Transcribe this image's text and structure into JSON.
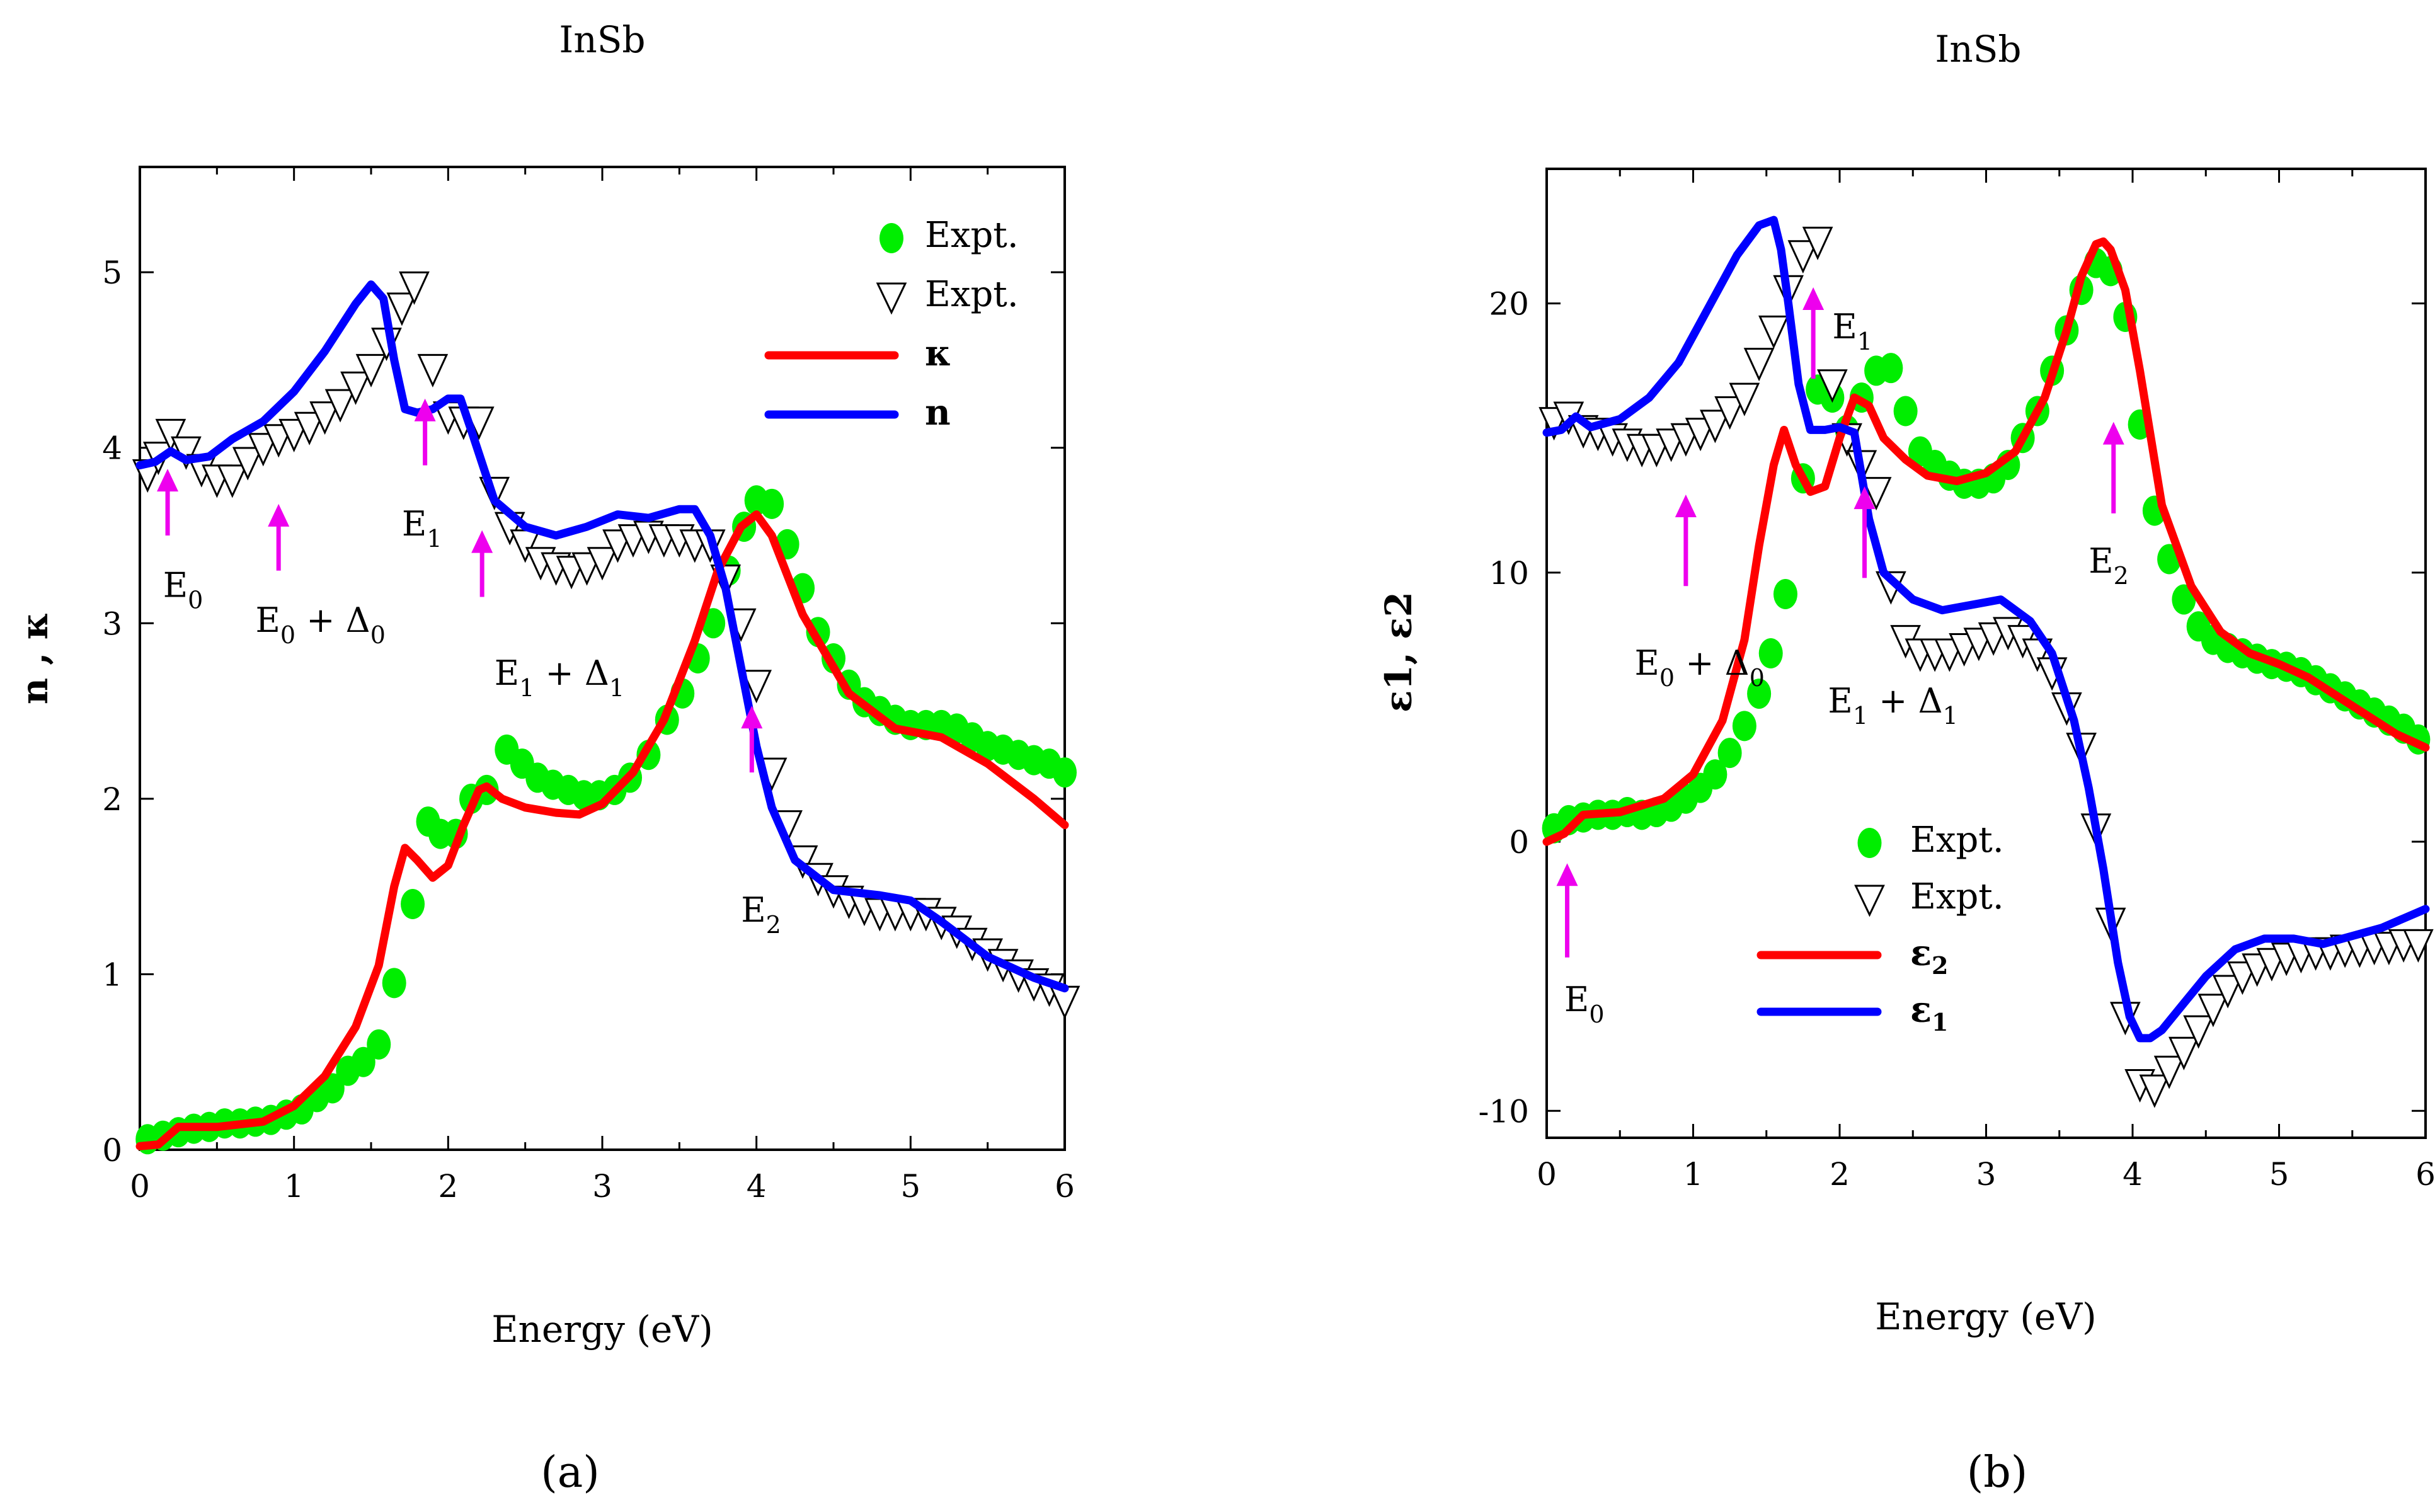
{
  "caption_a": "(a)",
  "caption_b": "(b)",
  "chart_data": [
    {
      "type": "line",
      "title": "InSb",
      "xlabel": "Energy (eV)",
      "ylabel": "n , κ",
      "xlim": [
        0,
        6
      ],
      "ylim": [
        0,
        5.6
      ],
      "xticks": [
        "0",
        "1",
        "2",
        "3",
        "4",
        "5",
        "6"
      ],
      "yticks": [
        "0",
        "1",
        "2",
        "3",
        "4",
        "5"
      ],
      "legend": [
        {
          "label": "Expt.",
          "marker": "circle",
          "color": "#00ee00"
        },
        {
          "label": "Expt.",
          "marker": "triangle-down",
          "color": "#000000"
        },
        {
          "label": "κ",
          "marker": "line",
          "color": "#ff0000"
        },
        {
          "label": "n",
          "marker": "line",
          "color": "#0000ff"
        }
      ],
      "series": [
        {
          "name": "κ",
          "color": "#ff0000",
          "kind": "line",
          "x": [
            0,
            0.12,
            0.25,
            0.5,
            0.8,
            1.0,
            1.2,
            1.4,
            1.55,
            1.65,
            1.72,
            1.8,
            1.9,
            2.0,
            2.1,
            2.2,
            2.25,
            2.35,
            2.5,
            2.7,
            2.85,
            3.0,
            3.2,
            3.4,
            3.6,
            3.75,
            3.9,
            4.0,
            4.1,
            4.3,
            4.6,
            4.9,
            5.2,
            5.5,
            5.8,
            6.0
          ],
          "y": [
            0.02,
            0.03,
            0.13,
            0.13,
            0.16,
            0.25,
            0.42,
            0.7,
            1.05,
            1.5,
            1.72,
            1.65,
            1.55,
            1.62,
            1.85,
            2.05,
            2.07,
            2.0,
            1.95,
            1.92,
            1.91,
            1.97,
            2.15,
            2.45,
            2.9,
            3.3,
            3.55,
            3.62,
            3.5,
            3.05,
            2.6,
            2.4,
            2.35,
            2.2,
            2.0,
            1.85
          ]
        },
        {
          "name": "n",
          "color": "#0000ff",
          "kind": "line",
          "x": [
            0,
            0.1,
            0.2,
            0.3,
            0.45,
            0.6,
            0.8,
            1.0,
            1.2,
            1.4,
            1.5,
            1.58,
            1.65,
            1.72,
            1.8,
            1.9,
            2.0,
            2.08,
            2.15,
            2.3,
            2.5,
            2.7,
            2.9,
            3.1,
            3.3,
            3.5,
            3.6,
            3.7,
            3.8,
            3.9,
            4.0,
            4.1,
            4.25,
            4.5,
            4.8,
            5.0,
            5.2,
            5.5,
            5.8,
            6.0
          ],
          "y": [
            3.9,
            3.92,
            3.98,
            3.93,
            3.95,
            4.05,
            4.15,
            4.32,
            4.55,
            4.82,
            4.93,
            4.85,
            4.5,
            4.22,
            4.2,
            4.22,
            4.28,
            4.28,
            4.1,
            3.7,
            3.55,
            3.5,
            3.55,
            3.62,
            3.6,
            3.65,
            3.65,
            3.5,
            3.2,
            2.75,
            2.3,
            1.95,
            1.65,
            1.48,
            1.45,
            1.42,
            1.3,
            1.1,
            0.98,
            0.92
          ]
        },
        {
          "name": "Expt. κ",
          "color": "#00ee00",
          "kind": "circle",
          "x": [
            0.05,
            0.15,
            0.25,
            0.35,
            0.45,
            0.55,
            0.65,
            0.75,
            0.85,
            0.95,
            1.05,
            1.15,
            1.25,
            1.35,
            1.45,
            1.55,
            1.65,
            1.77,
            1.87,
            1.95,
            2.05,
            2.15,
            2.25,
            2.38,
            2.48,
            2.58,
            2.68,
            2.78,
            2.88,
            2.98,
            3.08,
            3.18,
            3.3,
            3.42,
            3.52,
            3.62,
            3.72,
            3.82,
            3.92,
            4.0,
            4.1,
            4.2,
            4.3,
            4.4,
            4.5,
            4.6,
            4.7,
            4.8,
            4.9,
            5.0,
            5.1,
            5.2,
            5.3,
            5.4,
            5.5,
            5.6,
            5.7,
            5.8,
            5.9,
            6.0
          ],
          "y": [
            0.06,
            0.08,
            0.1,
            0.12,
            0.13,
            0.15,
            0.15,
            0.16,
            0.17,
            0.2,
            0.23,
            0.3,
            0.35,
            0.45,
            0.5,
            0.6,
            0.95,
            1.4,
            1.87,
            1.8,
            1.8,
            2.0,
            2.05,
            2.28,
            2.2,
            2.12,
            2.08,
            2.05,
            2.02,
            2.02,
            2.05,
            2.12,
            2.25,
            2.45,
            2.6,
            2.8,
            3.0,
            3.3,
            3.55,
            3.7,
            3.68,
            3.45,
            3.2,
            2.95,
            2.8,
            2.65,
            2.55,
            2.5,
            2.45,
            2.42,
            2.42,
            2.42,
            2.4,
            2.35,
            2.3,
            2.28,
            2.25,
            2.22,
            2.2,
            2.15
          ]
        },
        {
          "name": "Expt. n",
          "color": "#000000",
          "kind": "triangle",
          "x": [
            0.05,
            0.12,
            0.2,
            0.3,
            0.4,
            0.5,
            0.6,
            0.7,
            0.8,
            0.9,
            1.0,
            1.1,
            1.2,
            1.3,
            1.4,
            1.5,
            1.6,
            1.7,
            1.78,
            1.9,
            2.0,
            2.1,
            2.2,
            2.3,
            2.4,
            2.5,
            2.6,
            2.7,
            2.8,
            2.9,
            3.0,
            3.1,
            3.2,
            3.3,
            3.4,
            3.5,
            3.6,
            3.7,
            3.8,
            3.9,
            4.0,
            4.1,
            4.2,
            4.3,
            4.4,
            4.5,
            4.6,
            4.7,
            4.8,
            4.9,
            5.0,
            5.1,
            5.2,
            5.3,
            5.4,
            5.5,
            5.6,
            5.7,
            5.8,
            5.9,
            6.0
          ],
          "y": [
            3.85,
            3.95,
            4.08,
            3.98,
            3.88,
            3.82,
            3.82,
            3.92,
            4.0,
            4.05,
            4.08,
            4.12,
            4.18,
            4.25,
            4.35,
            4.45,
            4.6,
            4.8,
            4.92,
            4.45,
            4.18,
            4.15,
            4.15,
            3.75,
            3.55,
            3.45,
            3.35,
            3.32,
            3.3,
            3.32,
            3.35,
            3.45,
            3.48,
            3.5,
            3.48,
            3.48,
            3.45,
            3.45,
            3.25,
            3.0,
            2.65,
            2.15,
            1.85,
            1.65,
            1.55,
            1.48,
            1.42,
            1.38,
            1.35,
            1.35,
            1.35,
            1.35,
            1.3,
            1.25,
            1.18,
            1.12,
            1.06,
            1.0,
            0.95,
            0.92,
            0.85
          ]
        }
      ],
      "annotations": [
        {
          "main": "E",
          "sub": "0",
          "rest": "",
          "sub2": "",
          "x": 0.15,
          "y": 3.15
        },
        {
          "main": "E",
          "sub": "0",
          "rest": " + Δ",
          "sub2": "0",
          "x": 0.75,
          "y": 2.95
        },
        {
          "main": "E",
          "sub": "1",
          "rest": "",
          "sub2": "",
          "x": 1.7,
          "y": 3.5
        },
        {
          "main": "E",
          "sub": "1",
          "rest": " + Δ",
          "sub2": "1",
          "x": 2.3,
          "y": 2.65
        },
        {
          "main": "E",
          "sub": "2",
          "rest": "",
          "sub2": "",
          "x": 3.9,
          "y": 1.3
        }
      ],
      "arrows": [
        {
          "x": 0.18,
          "y_tail": 3.5,
          "y_head": 3.88
        },
        {
          "x": 0.9,
          "y_tail": 3.3,
          "y_head": 3.68
        },
        {
          "x": 1.85,
          "y_tail": 3.9,
          "y_head": 4.28
        },
        {
          "x": 2.22,
          "y_tail": 3.15,
          "y_head": 3.53
        },
        {
          "x": 3.97,
          "y_tail": 2.15,
          "y_head": 2.53
        }
      ]
    },
    {
      "type": "line",
      "title": "InSb",
      "xlabel": "Energy (eV)",
      "ylabel": "ε1, ε2",
      "xlim": [
        0,
        6
      ],
      "ylim": [
        -11,
        25
      ],
      "xticks": [
        "0",
        "1",
        "2",
        "3",
        "4",
        "5",
        "6"
      ],
      "yticks": [
        "-10",
        "0",
        "10",
        "20"
      ],
      "yticks_values": [
        -10,
        0,
        10,
        20
      ],
      "legend": [
        {
          "label": "Expt.",
          "marker": "circle",
          "color": "#00ee00"
        },
        {
          "label": "Expt.",
          "marker": "triangle-down",
          "color": "#000000"
        },
        {
          "label": "ε",
          "label_sub": "2",
          "marker": "line",
          "color": "#ff0000"
        },
        {
          "label": "ε",
          "label_sub": "1",
          "marker": "line",
          "color": "#0000ff"
        }
      ],
      "series": [
        {
          "name": "ε2",
          "color": "#ff0000",
          "kind": "line",
          "x": [
            0,
            0.12,
            0.25,
            0.5,
            0.8,
            1.0,
            1.2,
            1.35,
            1.45,
            1.55,
            1.62,
            1.7,
            1.8,
            1.9,
            2.0,
            2.1,
            2.2,
            2.3,
            2.45,
            2.6,
            2.8,
            3.0,
            3.2,
            3.4,
            3.55,
            3.65,
            3.75,
            3.8,
            3.85,
            3.95,
            4.05,
            4.2,
            4.4,
            4.6,
            4.8,
            5.0,
            5.2,
            5.4,
            5.6,
            5.8,
            6.0
          ],
          "y": [
            0,
            0.3,
            1.0,
            1.1,
            1.6,
            2.5,
            4.5,
            7.5,
            11,
            14,
            15.3,
            14,
            13,
            13.2,
            15,
            16.5,
            16.2,
            15,
            14.2,
            13.6,
            13.4,
            13.7,
            14.5,
            16.5,
            19,
            21,
            22.2,
            22.3,
            22,
            20.5,
            17.5,
            12.5,
            9.5,
            7.8,
            7.0,
            6.6,
            6.1,
            5.4,
            4.7,
            4.0,
            3.5
          ]
        },
        {
          "name": "ε1",
          "color": "#0000ff",
          "kind": "line",
          "x": [
            0,
            0.1,
            0.2,
            0.3,
            0.5,
            0.7,
            0.9,
            1.1,
            1.3,
            1.45,
            1.55,
            1.6,
            1.65,
            1.72,
            1.8,
            1.9,
            2.0,
            2.1,
            2.2,
            2.3,
            2.5,
            2.7,
            2.9,
            3.1,
            3.3,
            3.45,
            3.6,
            3.7,
            3.8,
            3.9,
            3.98,
            4.05,
            4.12,
            4.2,
            4.35,
            4.5,
            4.7,
            4.9,
            5.1,
            5.3,
            5.5,
            5.7,
            6.0
          ],
          "y": [
            15.2,
            15.3,
            15.8,
            15.4,
            15.7,
            16.5,
            17.8,
            19.8,
            21.8,
            22.9,
            23.1,
            22,
            20,
            17,
            15.3,
            15.3,
            15.4,
            15.2,
            12,
            10,
            9,
            8.6,
            8.8,
            9,
            8.2,
            7,
            4.5,
            2,
            -1,
            -4.5,
            -6.5,
            -7.3,
            -7.3,
            -7,
            -6,
            -5,
            -4,
            -3.6,
            -3.6,
            -3.8,
            -3.5,
            -3.2,
            -2.5
          ]
        },
        {
          "name": "Expt. ε2",
          "color": "#00ee00",
          "kind": "circle",
          "x": [
            0.05,
            0.15,
            0.25,
            0.35,
            0.45,
            0.55,
            0.65,
            0.75,
            0.85,
            0.95,
            1.05,
            1.15,
            1.25,
            1.35,
            1.45,
            1.53,
            1.63,
            1.75,
            1.85,
            1.95,
            2.05,
            2.15,
            2.25,
            2.35,
            2.45,
            2.55,
            2.65,
            2.75,
            2.85,
            2.95,
            3.05,
            3.15,
            3.25,
            3.35,
            3.45,
            3.55,
            3.65,
            3.75,
            3.85,
            3.95,
            4.05,
            4.15,
            4.25,
            4.35,
            4.45,
            4.55,
            4.65,
            4.75,
            4.85,
            4.95,
            5.05,
            5.15,
            5.25,
            5.35,
            5.45,
            5.55,
            5.65,
            5.75,
            5.85,
            5.95
          ],
          "y": [
            0.5,
            0.8,
            0.9,
            1.0,
            1.0,
            1.1,
            1.0,
            1.1,
            1.3,
            1.6,
            2.0,
            2.5,
            3.3,
            4.3,
            5.5,
            7,
            9.2,
            13.5,
            16.8,
            16.5,
            15.3,
            16.5,
            17.5,
            17.6,
            16,
            14.5,
            14,
            13.6,
            13.3,
            13.3,
            13.5,
            14,
            15,
            16,
            17.5,
            19,
            20.5,
            21.5,
            21.2,
            19.5,
            15.5,
            12.3,
            10.5,
            9,
            8,
            7.5,
            7.2,
            7,
            6.8,
            6.6,
            6.5,
            6.3,
            6,
            5.7,
            5.4,
            5.1,
            4.8,
            4.5,
            4.2,
            3.8
          ]
        },
        {
          "name": "Expt. ε1",
          "color": "#000000",
          "kind": "triangle",
          "x": [
            0.05,
            0.15,
            0.25,
            0.35,
            0.45,
            0.55,
            0.65,
            0.75,
            0.85,
            0.95,
            1.05,
            1.15,
            1.25,
            1.35,
            1.45,
            1.55,
            1.65,
            1.75,
            1.85,
            1.95,
            2.05,
            2.15,
            2.25,
            2.35,
            2.45,
            2.55,
            2.65,
            2.75,
            2.85,
            2.95,
            3.05,
            3.15,
            3.25,
            3.35,
            3.45,
            3.55,
            3.65,
            3.75,
            3.85,
            3.95,
            4.05,
            4.15,
            4.25,
            4.35,
            4.45,
            4.55,
            4.65,
            4.75,
            4.85,
            4.95,
            5.05,
            5.15,
            5.25,
            5.35,
            5.45,
            5.55,
            5.65,
            5.75,
            5.85,
            5.95
          ],
          "y": [
            15.6,
            15.8,
            15.3,
            15.2,
            15,
            14.8,
            14.6,
            14.6,
            14.8,
            15,
            15.2,
            15.5,
            16,
            16.5,
            17.8,
            19,
            20.5,
            21.8,
            22.3,
            17,
            15,
            14,
            13,
            9.5,
            7.5,
            7,
            7,
            7,
            7.2,
            7.4,
            7.6,
            7.8,
            7.5,
            7.0,
            6.3,
            5.0,
            3.5,
            0.5,
            -3,
            -6.5,
            -9,
            -9.2,
            -8.5,
            -7.8,
            -7,
            -6.2,
            -5.5,
            -5,
            -4.7,
            -4.5,
            -4.3,
            -4.2,
            -4.1,
            -4.1,
            -4,
            -4,
            -3.9,
            -3.9,
            -3.8,
            -3.8
          ]
        }
      ],
      "annotations": [
        {
          "main": "E",
          "sub": "0",
          "rest": "",
          "sub2": "",
          "x": 0.12,
          "y": -6.3
        },
        {
          "main": "E",
          "sub": "0",
          "rest": " + Δ",
          "sub2": "0",
          "x": 0.6,
          "y": 6.2
        },
        {
          "main": "E",
          "sub": "1",
          "rest": "",
          "sub2": "",
          "x": 1.95,
          "y": 18.7
        },
        {
          "main": "E",
          "sub": "1",
          "rest": " + Δ",
          "sub2": "1",
          "x": 1.92,
          "y": 4.8
        },
        {
          "main": "E",
          "sub": "2",
          "rest": "",
          "sub2": "",
          "x": 3.7,
          "y": 10
        }
      ],
      "arrows": [
        {
          "x": 0.14,
          "y_tail": -4.3,
          "y_head": -0.8
        },
        {
          "x": 0.95,
          "y_tail": 9.5,
          "y_head": 12.9
        },
        {
          "x": 1.82,
          "y_tail": 17.2,
          "y_head": 20.6
        },
        {
          "x": 2.17,
          "y_tail": 9.8,
          "y_head": 13.2
        },
        {
          "x": 3.87,
          "y_tail": 12.2,
          "y_head": 15.6
        }
      ]
    }
  ]
}
